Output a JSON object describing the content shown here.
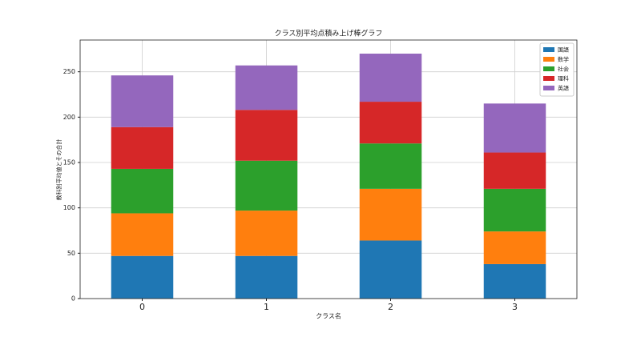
{
  "chart_data": {
    "type": "stacked_bar",
    "title": "クラス別平均点積み上げ棒グラフ",
    "x_label": "クラス名",
    "y_label": "教科別平均値とその合計",
    "categories": [
      "0",
      "1",
      "2",
      "3"
    ],
    "series": [
      {
        "name": "国語",
        "color": "#1f77b4",
        "values": [
          47,
          47,
          64,
          38
        ]
      },
      {
        "name": "数学",
        "color": "#ff7f0e",
        "values": [
          47,
          50,
          57,
          36
        ]
      },
      {
        "name": "社会",
        "color": "#2ca02c",
        "values": [
          49,
          55,
          50,
          47
        ]
      },
      {
        "name": "理科",
        "color": "#d62728",
        "values": [
          46,
          56,
          46,
          40
        ]
      },
      {
        "name": "英語",
        "color": "#9467bd",
        "values": [
          57,
          49,
          53,
          54
        ]
      }
    ],
    "ylim": [
      0,
      285
    ],
    "yticks": [
      0,
      50,
      100,
      150,
      200,
      250
    ],
    "grid": true,
    "legend": "upper right"
  }
}
